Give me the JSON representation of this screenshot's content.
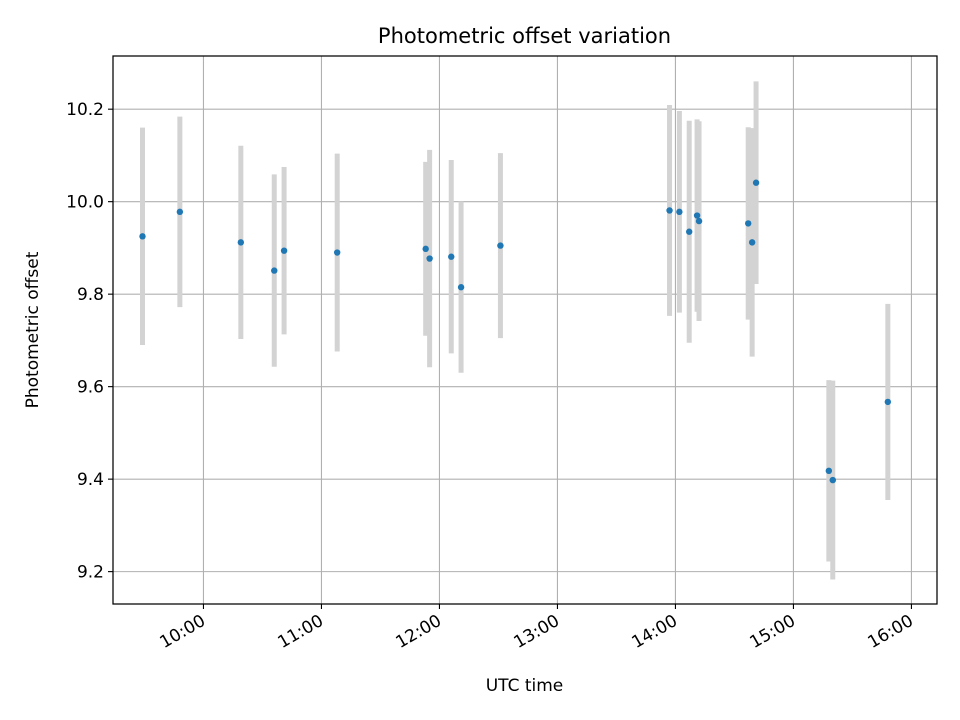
{
  "chart_data": {
    "type": "scatter",
    "title": "Photometric offset variation",
    "xlabel": "UTC time",
    "ylabel": "Photometric offset",
    "x_ticks": [
      "10:00",
      "11:00",
      "12:00",
      "13:00",
      "14:00",
      "15:00",
      "16:00"
    ],
    "y_ticks": [
      "9.2",
      "9.4",
      "9.6",
      "9.8",
      "10.0",
      "10.2"
    ],
    "xlim": [
      "09:14",
      "16:13"
    ],
    "ylim": [
      9.13,
      10.315
    ],
    "grid": true,
    "marker_color": "#1f77b4",
    "errorbar_color": "#d3d3d3",
    "points": [
      {
        "x": "09:29",
        "y": 9.925,
        "ylow": 9.69,
        "yhigh": 10.16
      },
      {
        "x": "09:48",
        "y": 9.978,
        "ylow": 9.772,
        "yhigh": 10.184
      },
      {
        "x": "10:19",
        "y": 9.912,
        "ylow": 9.703,
        "yhigh": 10.121
      },
      {
        "x": "10:36",
        "y": 9.851,
        "ylow": 9.643,
        "yhigh": 10.059
      },
      {
        "x": "10:41",
        "y": 9.894,
        "ylow": 9.713,
        "yhigh": 10.075
      },
      {
        "x": "11:08",
        "y": 9.89,
        "ylow": 9.676,
        "yhigh": 10.104
      },
      {
        "x": "11:53",
        "y": 9.898,
        "ylow": 9.71,
        "yhigh": 10.086
      },
      {
        "x": "11:55",
        "y": 9.877,
        "ylow": 9.642,
        "yhigh": 10.112
      },
      {
        "x": "12:06",
        "y": 9.881,
        "ylow": 9.672,
        "yhigh": 10.09
      },
      {
        "x": "12:11",
        "y": 9.815,
        "ylow": 9.63,
        "yhigh": 10.0
      },
      {
        "x": "12:31",
        "y": 9.905,
        "ylow": 9.705,
        "yhigh": 10.105
      },
      {
        "x": "13:57",
        "y": 9.981,
        "ylow": 9.753,
        "yhigh": 10.209
      },
      {
        "x": "14:02",
        "y": 9.978,
        "ylow": 9.76,
        "yhigh": 10.196
      },
      {
        "x": "14:07",
        "y": 9.935,
        "ylow": 9.695,
        "yhigh": 10.175
      },
      {
        "x": "14:11",
        "y": 9.97,
        "ylow": 9.762,
        "yhigh": 10.178
      },
      {
        "x": "14:12",
        "y": 9.958,
        "ylow": 9.742,
        "yhigh": 10.174
      },
      {
        "x": "14:37",
        "y": 9.953,
        "ylow": 9.745,
        "yhigh": 10.161
      },
      {
        "x": "14:39",
        "y": 9.912,
        "ylow": 9.665,
        "yhigh": 10.159
      },
      {
        "x": "14:41",
        "y": 10.041,
        "ylow": 9.822,
        "yhigh": 10.26
      },
      {
        "x": "15:18",
        "y": 9.418,
        "ylow": 9.222,
        "yhigh": 9.614
      },
      {
        "x": "15:20",
        "y": 9.398,
        "ylow": 9.183,
        "yhigh": 9.613
      },
      {
        "x": "15:48",
        "y": 9.567,
        "ylow": 9.355,
        "yhigh": 9.779
      }
    ]
  }
}
